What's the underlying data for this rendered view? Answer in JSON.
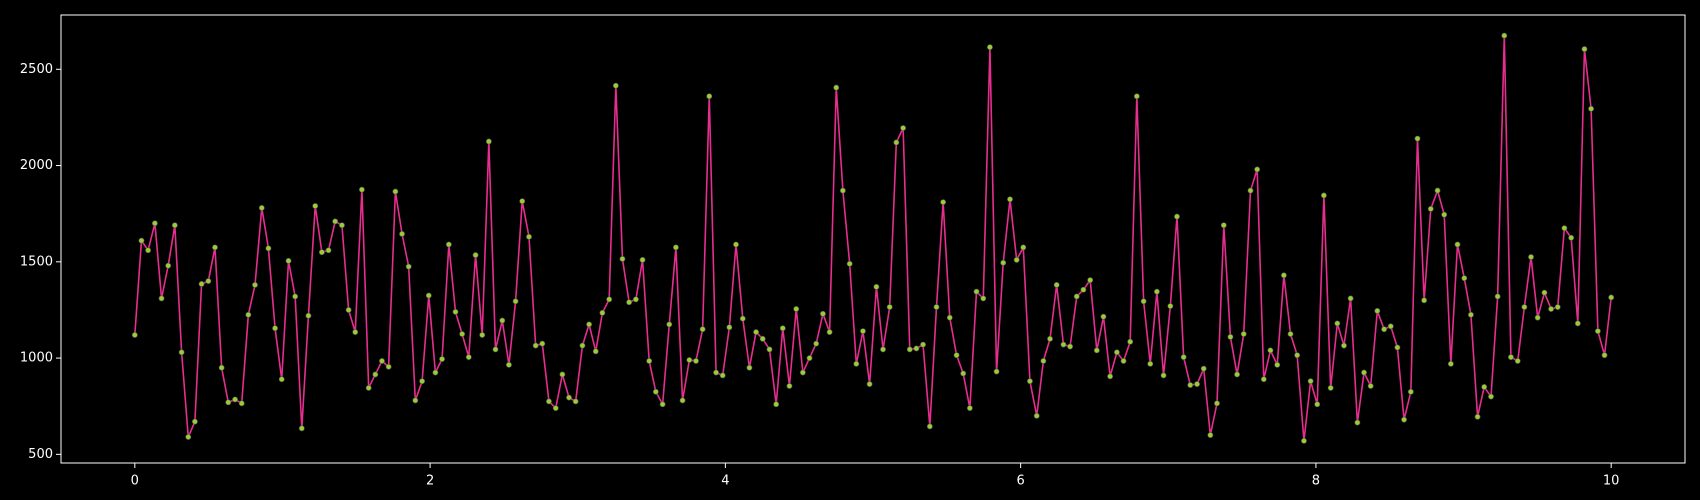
{
  "chart_data": {
    "type": "line",
    "x": [
      0,
      0.045,
      0.09,
      0.136,
      0.181,
      0.226,
      0.271,
      0.317,
      0.362,
      0.407,
      0.452,
      0.498,
      0.543,
      0.588,
      0.633,
      0.679,
      0.724,
      0.769,
      0.814,
      0.86,
      0.905,
      0.95,
      0.995,
      1.041,
      1.086,
      1.131,
      1.176,
      1.222,
      1.267,
      1.312,
      1.357,
      1.403,
      1.448,
      1.493,
      1.538,
      1.584,
      1.629,
      1.674,
      1.719,
      1.765,
      1.81,
      1.855,
      1.9,
      1.946,
      1.991,
      2.036,
      2.081,
      2.127,
      2.172,
      2.217,
      2.262,
      2.308,
      2.353,
      2.398,
      2.443,
      2.489,
      2.534,
      2.579,
      2.624,
      2.67,
      2.715,
      2.76,
      2.805,
      2.851,
      2.896,
      2.941,
      2.986,
      3.032,
      3.077,
      3.122,
      3.167,
      3.213,
      3.258,
      3.303,
      3.348,
      3.394,
      3.439,
      3.484,
      3.529,
      3.575,
      3.62,
      3.665,
      3.71,
      3.756,
      3.801,
      3.846,
      3.891,
      3.937,
      3.982,
      4.027,
      4.072,
      4.118,
      4.163,
      4.208,
      4.253,
      4.299,
      4.344,
      4.389,
      4.434,
      4.48,
      4.525,
      4.57,
      4.615,
      4.661,
      4.706,
      4.751,
      4.796,
      4.842,
      4.887,
      4.932,
      4.977,
      5.023,
      5.068,
      5.113,
      5.158,
      5.204,
      5.249,
      5.294,
      5.339,
      5.385,
      5.43,
      5.475,
      5.52,
      5.566,
      5.611,
      5.656,
      5.701,
      5.747,
      5.792,
      5.837,
      5.882,
      5.928,
      5.973,
      6.018,
      6.063,
      6.109,
      6.154,
      6.199,
      6.244,
      6.29,
      6.335,
      6.38,
      6.425,
      6.471,
      6.516,
      6.561,
      6.606,
      6.652,
      6.697,
      6.742,
      6.787,
      6.833,
      6.878,
      6.923,
      6.968,
      7.014,
      7.059,
      7.104,
      7.149,
      7.195,
      7.24,
      7.285,
      7.33,
      7.376,
      7.421,
      7.466,
      7.511,
      7.557,
      7.602,
      7.647,
      7.692,
      7.738,
      7.783,
      7.828,
      7.873,
      7.919,
      7.964,
      8.009,
      8.054,
      8.1,
      8.145,
      8.19,
      8.235,
      8.281,
      8.326,
      8.371,
      8.416,
      8.462,
      8.507,
      8.552,
      8.597,
      8.643,
      8.688,
      8.733,
      8.778,
      8.824,
      8.869,
      8.914,
      8.959,
      9.005,
      9.05,
      9.095,
      9.14,
      9.186,
      9.231,
      9.276,
      9.321,
      9.367,
      9.412,
      9.457,
      9.502,
      9.548,
      9.593,
      9.638,
      9.683,
      9.729,
      9.774,
      9.819,
      9.864,
      9.91,
      9.955,
      10.0
    ],
    "values": [
      1120,
      1610,
      1560,
      1700,
      1310,
      1480,
      1690,
      1030,
      590,
      670,
      1385,
      1400,
      1575,
      950,
      770,
      785,
      765,
      1225,
      1380,
      1780,
      1570,
      1155,
      890,
      1505,
      1320,
      635,
      1220,
      1790,
      1550,
      1560,
      1710,
      1690,
      1250,
      1135,
      1875,
      845,
      915,
      985,
      955,
      1865,
      1645,
      1475,
      780,
      880,
      1325,
      925,
      995,
      1590,
      1240,
      1125,
      1005,
      1535,
      1120,
      2125,
      1045,
      1195,
      965,
      1295,
      1815,
      1630,
      1065,
      1075,
      775,
      740,
      915,
      795,
      775,
      1065,
      1175,
      1035,
      1235,
      1305,
      2415,
      1515,
      1290,
      1305,
      1510,
      985,
      825,
      760,
      1175,
      1575,
      780,
      990,
      985,
      1150,
      2360,
      925,
      910,
      1160,
      1590,
      1205,
      950,
      1135,
      1100,
      1045,
      760,
      1155,
      855,
      1255,
      925,
      1000,
      1075,
      1230,
      1135,
      2405,
      1870,
      1490,
      970,
      1140,
      865,
      1370,
      1045,
      1265,
      2120,
      2195,
      1045,
      1050,
      1070,
      645,
      1265,
      1810,
      1210,
      1015,
      920,
      740,
      1345,
      1310,
      2615,
      930,
      1495,
      1825,
      1510,
      1575,
      880,
      700,
      985,
      1100,
      1380,
      1070,
      1060,
      1320,
      1355,
      1405,
      1040,
      1215,
      905,
      1030,
      985,
      1085,
      2360,
      1295,
      970,
      1345,
      910,
      1270,
      1735,
      1005,
      860,
      865,
      945,
      600,
      765,
      1690,
      1110,
      915,
      1125,
      1870,
      1980,
      890,
      1040,
      965,
      1430,
      1125,
      1015,
      570,
      880,
      760,
      1845,
      845,
      1180,
      1065,
      1310,
      665,
      925,
      855,
      1245,
      1150,
      1165,
      1055,
      680,
      825,
      2140,
      1300,
      1775,
      1870,
      1745,
      970,
      1590,
      1415,
      1225,
      695,
      850,
      800,
      1320,
      2675,
      1005,
      985,
      1265,
      1525,
      1210,
      1340,
      1255,
      1265,
      1675,
      1625,
      1180,
      2605,
      2295,
      1140,
      1015,
      1315
    ],
    "color": "#e62e8f",
    "marker_color": "#9acd32",
    "xlim": [
      -0.5,
      10.5
    ],
    "xticks": [
      0,
      2,
      4,
      6,
      8,
      10
    ],
    "ylim": [
      455,
      2782
    ],
    "yticks": [
      500,
      1000,
      1500,
      2000,
      2500
    ]
  }
}
